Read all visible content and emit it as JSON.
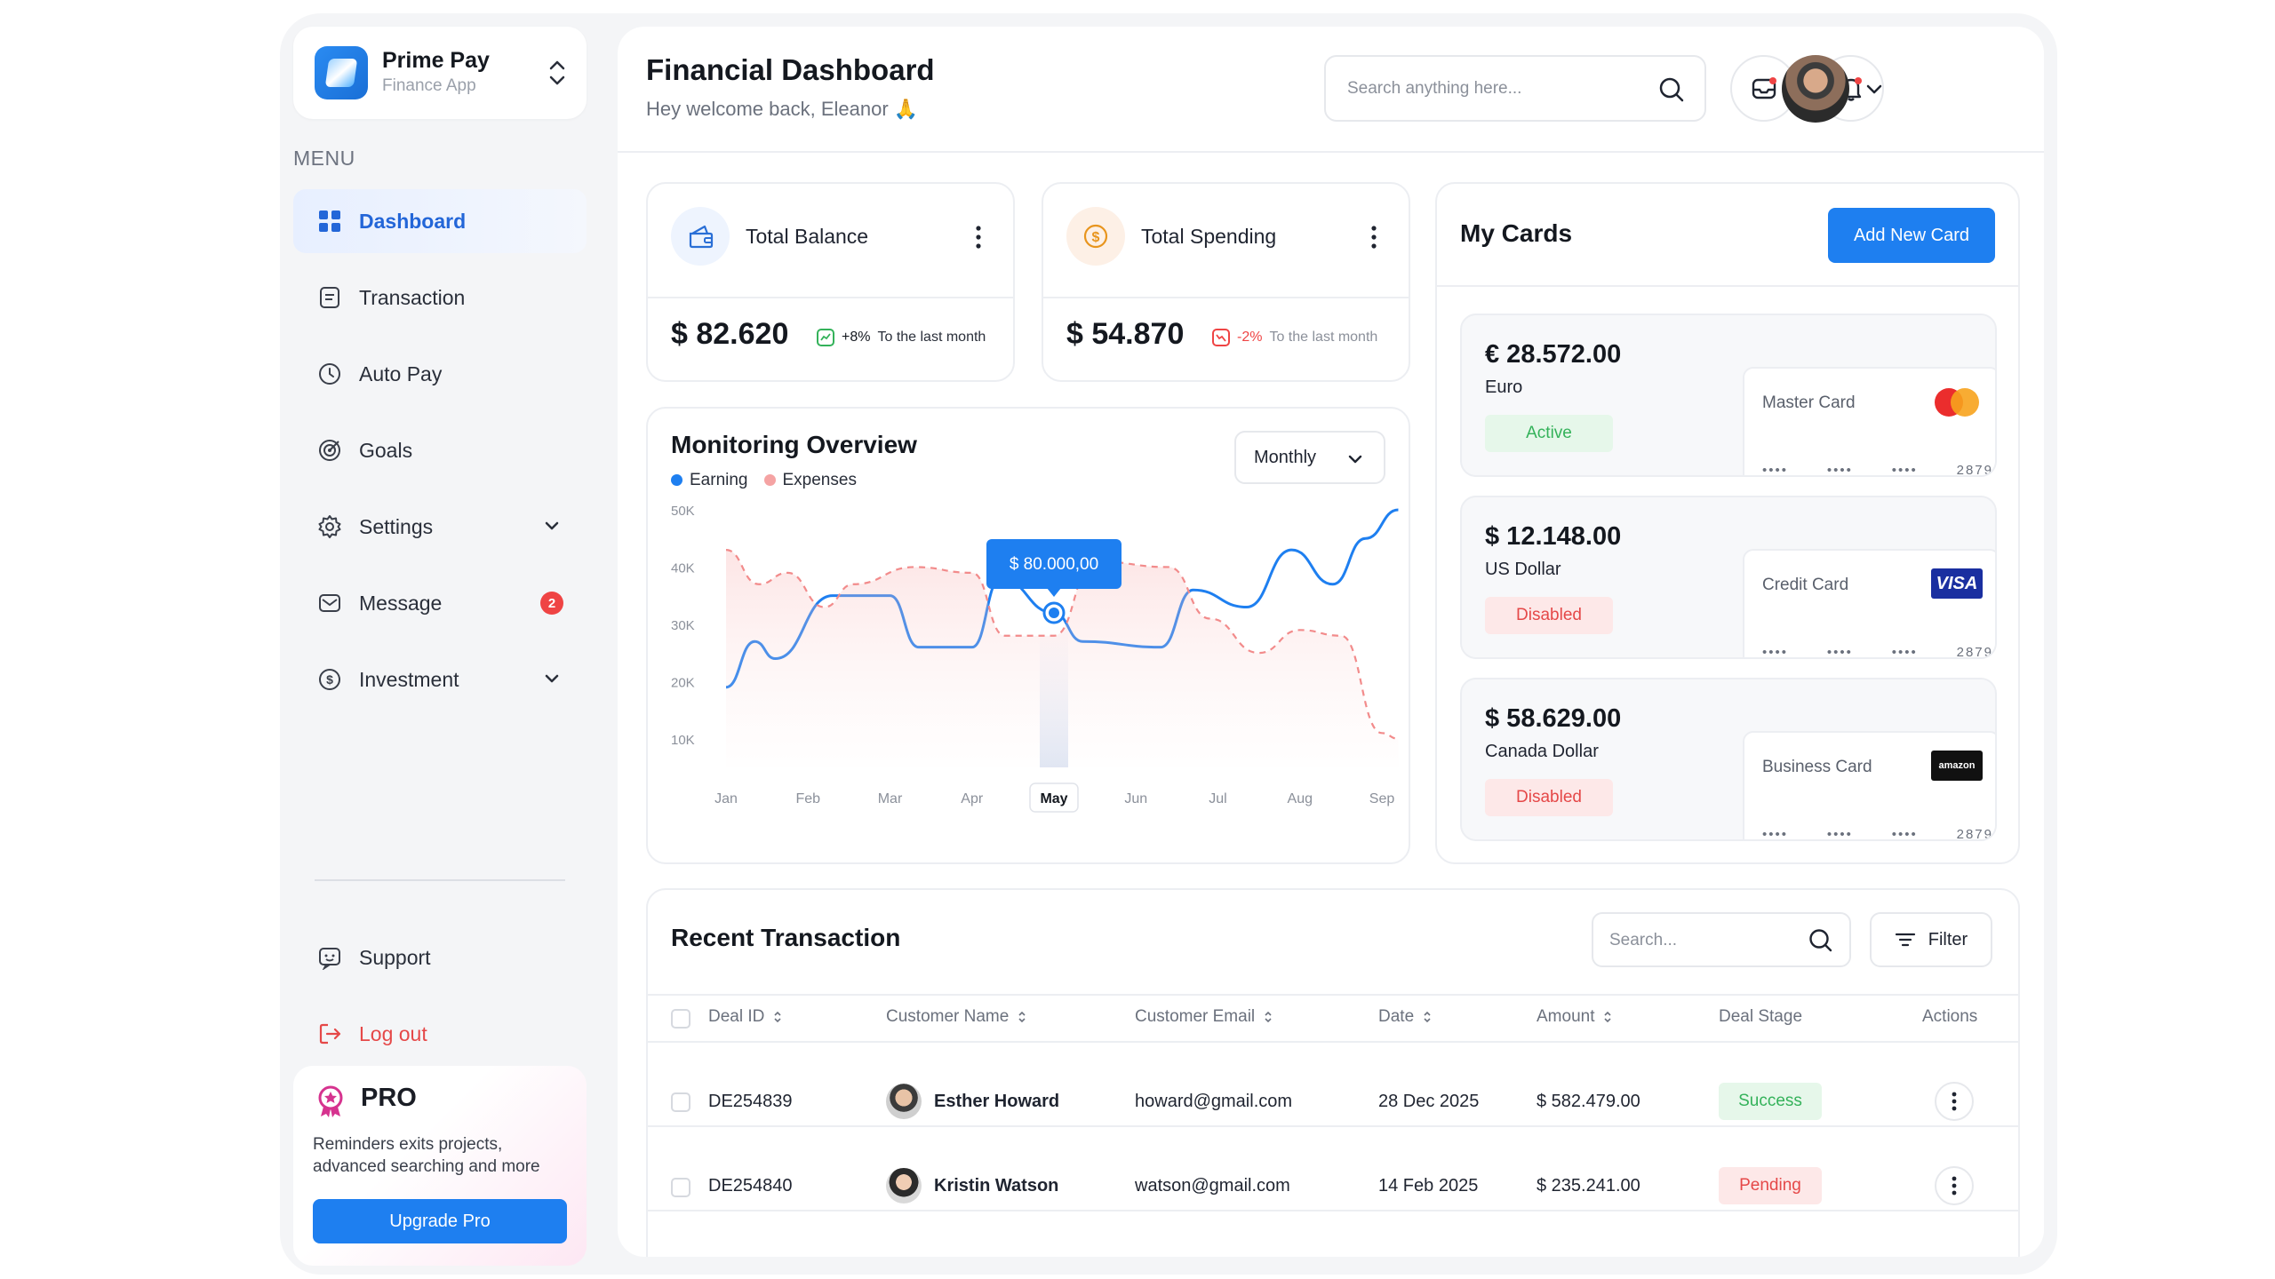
{
  "brand": {
    "name": "Prime Pay",
    "subtitle": "Finance App"
  },
  "sidebar": {
    "menu_label": "MENU",
    "items": [
      {
        "label": "Dashboard",
        "icon": "grid-icon",
        "active": true
      },
      {
        "label": "Transaction",
        "icon": "document-icon"
      },
      {
        "label": "Auto Pay",
        "icon": "clock-icon"
      },
      {
        "label": "Goals",
        "icon": "target-icon"
      },
      {
        "label": "Settings",
        "icon": "gear-icon",
        "expandable": true
      },
      {
        "label": "Message",
        "icon": "mail-icon",
        "badge": "2"
      },
      {
        "label": "Investment",
        "icon": "dollar-circle-icon",
        "expandable": true
      }
    ],
    "support_label": "Support",
    "logout_label": "Log out",
    "pro": {
      "title": "PRO",
      "text": "Reminders exits projects, advanced searching and more",
      "button": "Upgrade Pro"
    }
  },
  "header": {
    "title": "Financial Dashboard",
    "welcome": "Hey welcome back, Eleanor 🙏",
    "search_placeholder": "Search anything here..."
  },
  "stats": [
    {
      "title": "Total Balance",
      "value": "$ 82.620",
      "delta": "+8%",
      "delta_text": "To the last month",
      "trend": "up",
      "icon": "wallet-icon"
    },
    {
      "title": "Total Spending",
      "value": "$ 54.870",
      "delta": "-2%",
      "delta_text": "To the last month",
      "trend": "down",
      "icon": "coin-icon"
    }
  ],
  "monitoring": {
    "title": "Monitoring Overview",
    "legend": [
      "Earning",
      "Expenses"
    ],
    "period": "Monthly",
    "tooltip": "$ 80.000,00"
  },
  "chart_data": {
    "type": "line",
    "x": [
      "Jan",
      "Feb",
      "Mar",
      "Apr",
      "May",
      "Jun",
      "Jul",
      "Aug",
      "Sep"
    ],
    "highlight": "May",
    "yticks": [
      "50K",
      "40K",
      "30K",
      "20K",
      "10K"
    ],
    "ylim": [
      5000,
      50000
    ],
    "series": [
      {
        "name": "Earning",
        "color": "#1e7ff0",
        "style": "solid",
        "points": [
          [
            0,
            19000
          ],
          [
            0.35,
            27000
          ],
          [
            0.6,
            24000
          ],
          [
            1.3,
            35000
          ],
          [
            2.0,
            35000
          ],
          [
            2.35,
            26000
          ],
          [
            3.0,
            26000
          ],
          [
            3.35,
            38000
          ],
          [
            4.0,
            32000
          ],
          [
            4.35,
            27000
          ],
          [
            5.3,
            26000
          ],
          [
            5.7,
            36000
          ],
          [
            6.35,
            33000
          ],
          [
            6.9,
            43000
          ],
          [
            7.4,
            37000
          ],
          [
            7.8,
            45000
          ],
          [
            8.2,
            50000
          ]
        ]
      },
      {
        "name": "Expenses",
        "color": "#f28b8b",
        "style": "dashed",
        "points": [
          [
            0,
            43000
          ],
          [
            0.4,
            37000
          ],
          [
            0.75,
            39000
          ],
          [
            1.2,
            33000
          ],
          [
            1.55,
            37000
          ],
          [
            2.3,
            40000
          ],
          [
            3.0,
            39000
          ],
          [
            3.4,
            28000
          ],
          [
            4.0,
            28000
          ],
          [
            4.5,
            41000
          ],
          [
            5.4,
            40000
          ],
          [
            5.9,
            31000
          ],
          [
            6.5,
            25000
          ],
          [
            7.0,
            29000
          ],
          [
            7.5,
            28000
          ],
          [
            8.0,
            11000
          ],
          [
            8.2,
            10000
          ]
        ]
      }
    ]
  },
  "my_cards": {
    "title": "My Cards",
    "add_button": "Add New Card",
    "accounts": [
      {
        "amount": "€ 28.572.00",
        "currency": "Euro",
        "status": "Active",
        "card_type": "Master Card",
        "logo": "mastercard-icon",
        "last4": "2879"
      },
      {
        "amount": "$ 12.148.00",
        "currency": "US Dollar",
        "status": "Disabled",
        "card_type": "Credit Card",
        "logo": "visa-icon",
        "logo_text": "VISA",
        "last4": "2879"
      },
      {
        "amount": "$ 58.629.00",
        "currency": "Canada Dollar",
        "status": "Disabled",
        "card_type": "Business Card",
        "logo": "amazon-icon",
        "logo_text": "amazon",
        "last4": "2879"
      }
    ],
    "masked": "••••"
  },
  "transactions": {
    "title": "Recent Transaction",
    "search_placeholder": "Search...",
    "filter_label": "Filter",
    "columns": [
      "Deal ID",
      "Customer Name",
      "Customer Email",
      "Date",
      "Amount",
      "Deal Stage",
      "Actions"
    ],
    "rows": [
      {
        "id": "DE254839",
        "name": "Esther Howard",
        "email": "howard@gmail.com",
        "date": "28 Dec 2025",
        "amount": "$ 582.479.00",
        "stage": "Success"
      },
      {
        "id": "DE254840",
        "name": "Kristin Watson",
        "email": "watson@gmail.com",
        "date": "14 Feb 2025",
        "amount": "$ 235.241.00",
        "stage": "Pending"
      }
    ]
  }
}
